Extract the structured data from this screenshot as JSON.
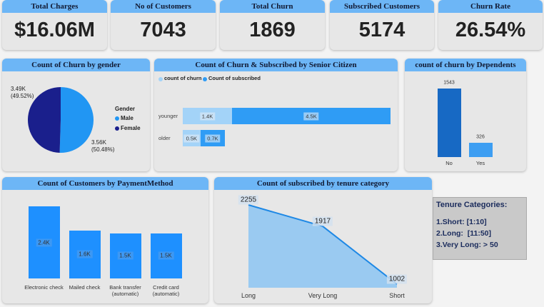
{
  "kpis": [
    {
      "label": "Total Charges",
      "value": "$16.06M"
    },
    {
      "label": "No of Customers",
      "value": "7043"
    },
    {
      "label": "Total Churn",
      "value": "1869"
    },
    {
      "label": "Subscribed Customers",
      "value": "5174"
    },
    {
      "label": "Churn Rate",
      "value": "26.54%"
    }
  ],
  "chart_data": [
    {
      "type": "pie",
      "title": "Count of Churn by gender",
      "legend_title": "Gender",
      "categories": [
        "Male",
        "Female"
      ],
      "values": [
        3560,
        3490
      ],
      "value_labels": [
        "3.56K (50.48%)",
        "3.49K (49.52%)"
      ],
      "colors": [
        "#2196f3",
        "#1a1f8c"
      ]
    },
    {
      "type": "bar",
      "horizontal": true,
      "stacked": true,
      "title": "Count of Churn & Subscribed by Senior Citizen",
      "categories": [
        "younger",
        "older"
      ],
      "series": [
        {
          "name": "count of churn",
          "color": "#a3d3f8",
          "values": [
            1400,
            500
          ],
          "value_labels": [
            "1.4K",
            "0.5K"
          ]
        },
        {
          "name": "Count of subscribed",
          "color": "#2f9cf5",
          "values": [
            4500,
            700
          ],
          "value_labels": [
            "4.5K",
            "0.7K"
          ]
        }
      ]
    },
    {
      "type": "bar",
      "title": "count of churn by Dependents",
      "categories": [
        "No",
        "Yes"
      ],
      "values": [
        1543,
        326
      ],
      "colors": [
        "#1769c4",
        "#3d9ef2"
      ]
    },
    {
      "type": "bar",
      "title": "Count of Customers by PaymentMethod",
      "categories": [
        "Electronic check",
        "Mailed check",
        "Bank transfer (automatic)",
        "Credit card (automatic)"
      ],
      "values": [
        2400,
        1600,
        1500,
        1500
      ],
      "value_labels": [
        "2.4K",
        "1.6K",
        "1.5K",
        "1.5K"
      ],
      "color": "#1e90ff"
    },
    {
      "type": "area",
      "title": "Count of subscribed by tenure category",
      "categories": [
        "Long",
        "Very Long",
        "Short"
      ],
      "values": [
        2255,
        1917,
        1002
      ],
      "color": "#8cc4f2",
      "line_color": "#1e88e5"
    }
  ],
  "note": {
    "title": "Tenure Categories:",
    "lines": [
      "1.Short: [1:10]",
      "2.Long:  [11:50]",
      "3.Very Long: > 50"
    ]
  }
}
